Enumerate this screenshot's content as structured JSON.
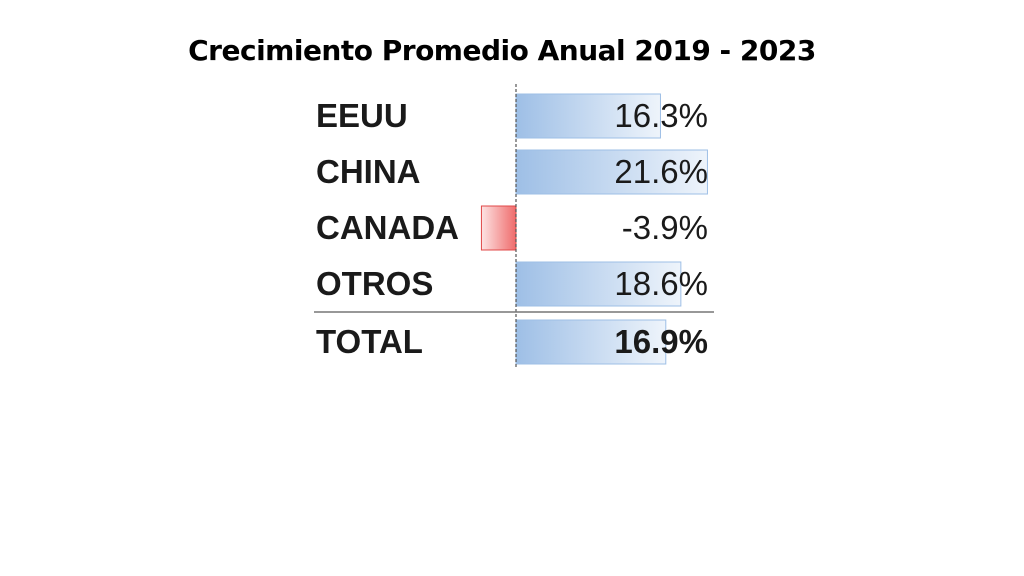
{
  "chart_data": {
    "type": "bar",
    "title": "Crecimiento Promedio Anual 2019 - 2023",
    "categories": [
      "EEUU",
      "CHINA",
      "CANADA",
      "OTROS",
      "TOTAL"
    ],
    "values": [
      16.3,
      21.6,
      -3.9,
      18.6,
      16.9
    ],
    "value_labels": [
      "16.3%",
      "21.6%",
      "-3.9%",
      "18.6%",
      "16.9%"
    ],
    "xlim": [
      -4.5,
      22
    ],
    "orientation": "horizontal",
    "colors": {
      "positive": "#bcd3ee",
      "negative": "#f07f7f",
      "text": "#1a1a1a"
    }
  }
}
